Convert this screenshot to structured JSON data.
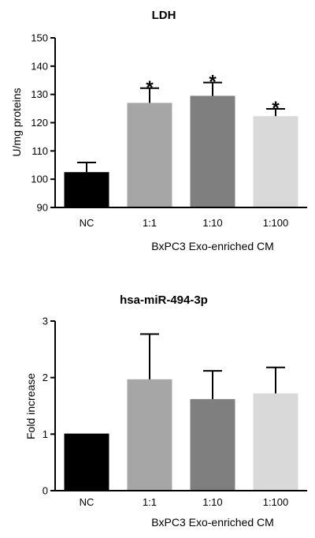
{
  "chart_data": [
    {
      "type": "bar",
      "title": "LDH",
      "ylabel": "U/mg proteins",
      "xlabel": "BxPC3 Exo-enriched CM",
      "categories": [
        "NC",
        "1:1",
        "1:10",
        "1:100"
      ],
      "values": [
        102.5,
        127,
        129.5,
        122.3
      ],
      "errors": [
        3.4,
        5.2,
        4.7,
        2.6
      ],
      "significance": [
        "",
        "*",
        "*",
        "*"
      ],
      "colors": [
        "#000000",
        "#a6a6a6",
        "#7f7f7f",
        "#d9d9d9"
      ],
      "ylim": [
        90,
        150
      ],
      "yticks": [
        90,
        100,
        110,
        120,
        130,
        140,
        150
      ],
      "grid": false,
      "legend": "none"
    },
    {
      "type": "bar",
      "title": "hsa-miR-494-3p",
      "ylabel": "Fold increase",
      "xlabel": "BxPC3 Exo-enriched CM",
      "categories": [
        "NC",
        "1:1",
        "1:10",
        "1:100"
      ],
      "values": [
        1.01,
        1.97,
        1.62,
        1.72
      ],
      "errors": [
        0,
        0.8,
        0.5,
        0.46
      ],
      "significance": [
        "",
        "",
        "",
        ""
      ],
      "colors": [
        "#000000",
        "#a6a6a6",
        "#7f7f7f",
        "#d9d9d9"
      ],
      "ylim": [
        0,
        3
      ],
      "yticks": [
        0,
        1,
        2,
        3
      ],
      "grid": false,
      "legend": "none"
    }
  ]
}
